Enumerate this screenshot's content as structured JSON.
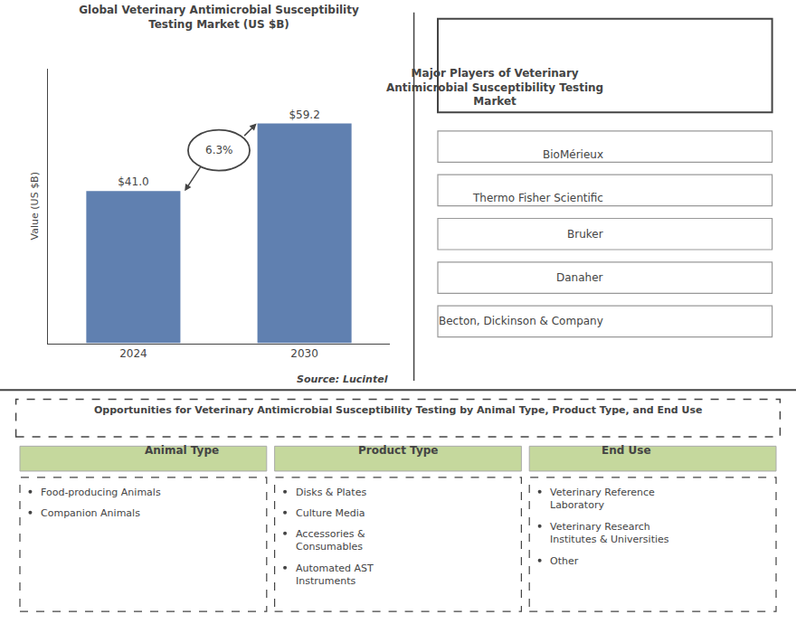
{
  "chart_data": {
    "type": "bar",
    "title": "Global Veterinary Antimicrobial Susceptibility\nTesting Market (US $B)",
    "categories": [
      "2024",
      "2030"
    ],
    "values": [
      41.0,
      59.2
    ],
    "value_labels": [
      "$41.0",
      "$59.2"
    ],
    "data_labels": true,
    "color": "#6080b0",
    "ylabel": "Value (US $B)",
    "ylim": [
      0,
      74
    ],
    "yticks": [],
    "tick_labels": "x",
    "grid": false,
    "annotations": [
      "6.3%",
      "Source: Lucintel"
    ]
  },
  "panels": {
    "major_players": {
      "title": "Major Players of Veterinary\nAntimicrobial Susceptibility Testing\nMarket",
      "items": [
        "BioMérieux",
        "Thermo Fisher Scientific",
        "Bruker",
        "Danaher",
        "Becton, Dickinson & Company"
      ]
    },
    "opportunities": {
      "title": "Opportunities for Veterinary Antimicrobial Susceptibility Testing by Animal Type, Product Type, and End Use",
      "color": "#c5d89d",
      "columns": [
        {
          "title": "Animal Type",
          "items": [
            "Food-producing Animals",
            "Companion Animals"
          ]
        },
        {
          "title": "Product Type",
          "items": [
            "Disks & Plates",
            "Culture Media",
            "Accessories &\nConsumables",
            "Automated AST\nInstruments"
          ]
        },
        {
          "title": "End Use",
          "items": [
            "Veterinary Reference\nLaboratory",
            "Veterinary Research\nInstitutes & Universities",
            "Other"
          ]
        }
      ]
    }
  }
}
